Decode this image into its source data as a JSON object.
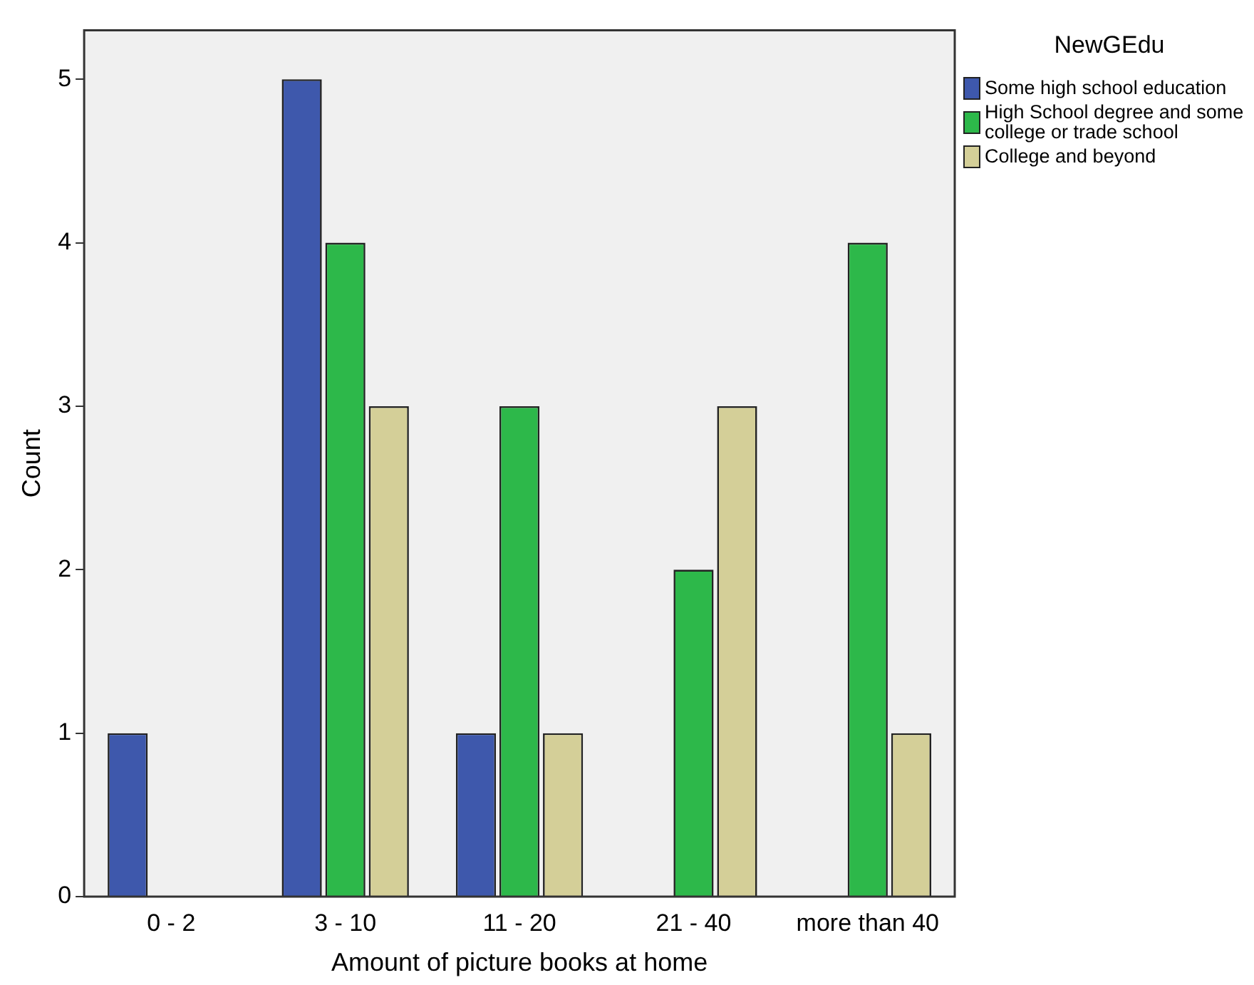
{
  "chart_data": {
    "type": "bar",
    "xlabel": "Amount of picture books at home",
    "ylabel": "Count",
    "legend_title": "NewGEdu",
    "legend": "top right",
    "grid": false,
    "categories": [
      "0 - 2",
      "3 - 10",
      "11 - 20",
      "21 - 40",
      "more than 40"
    ],
    "ylim": [
      0,
      5.3
    ],
    "yticks": [
      0,
      1,
      2,
      3,
      4,
      5
    ],
    "series": [
      {
        "name": "Some high school education",
        "color": "#3e58ac",
        "values": [
          1,
          5,
          1,
          0,
          0
        ]
      },
      {
        "name": "High School degree and some college or trade school",
        "color": "#2db84a",
        "values": [
          0,
          4,
          3,
          2,
          4
        ]
      },
      {
        "name": "College and beyond",
        "color": "#d4cf98",
        "values": [
          0,
          3,
          1,
          3,
          1
        ]
      }
    ]
  }
}
